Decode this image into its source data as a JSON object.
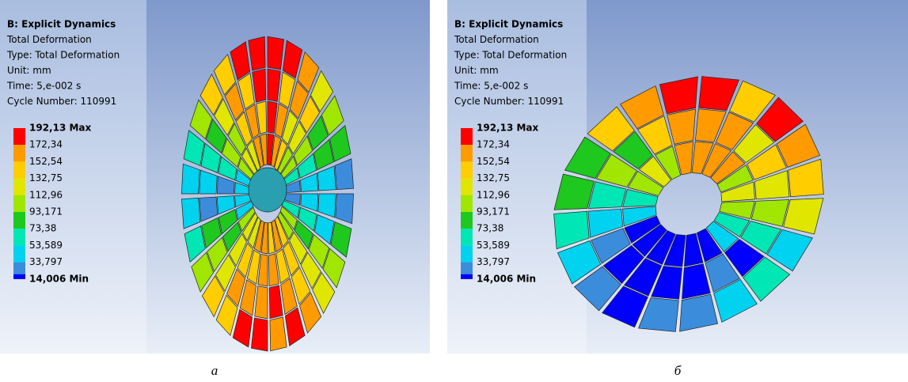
{
  "panels": [
    {
      "header": [
        "B: Explicit Dynamics",
        "Total Deformation",
        "Type: Total Deformation",
        "Unit: mm",
        "Time: 5,e-002 s",
        "Cycle Number: 110991"
      ],
      "legend": [
        "192,13 Max",
        "172,34",
        "152,54",
        "132,75",
        "112,96",
        "93,171",
        "73,38",
        "53,589",
        "33,797",
        "14,006 Min"
      ],
      "caption": "а"
    },
    {
      "header": [
        "B: Explicit Dynamics",
        "Total Deformation",
        "Type: Total Deformation",
        "Unit: mm",
        "Time: 5,e-002 s",
        "Cycle Number: 110991"
      ],
      "legend": [
        "192,13 Max",
        "172,34",
        "152,54",
        "132,75",
        "112,96",
        "93,171",
        "73,38",
        "53,589",
        "33,797",
        "14,006 Min"
      ],
      "caption": "б"
    }
  ],
  "legend_colors": [
    "#ff0000",
    "#ff9b00",
    "#ffcd00",
    "#e1e600",
    "#a0e600",
    "#1ec81e",
    "#00e6b4",
    "#00d2f0",
    "#3c8cdc",
    "#0000ff"
  ]
}
